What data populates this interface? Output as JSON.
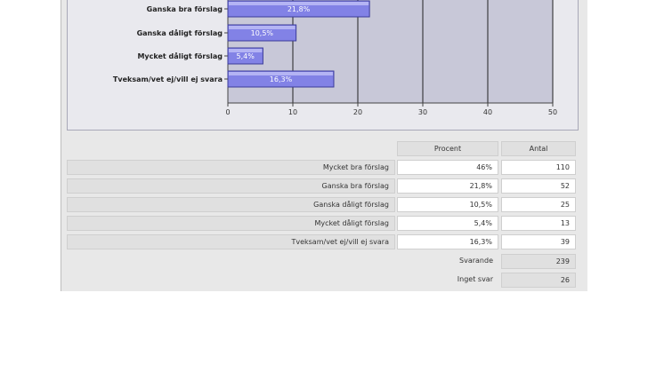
{
  "colors": {
    "bar": "#8282e6",
    "bar_edge": "#3c3c9a",
    "plot_bg": "#c8c8d8",
    "grid": "#222222"
  },
  "chart_data": {
    "type": "bar",
    "orientation": "horizontal",
    "categories": [
      "Ganska bra förslag",
      "Ganska dåligt förslag",
      "Mycket dåligt förslag",
      "Tveksam/vet ej/vill ej svara"
    ],
    "values": [
      21.8,
      10.5,
      5.4,
      16.3
    ],
    "value_labels": [
      "21,8%",
      "10,5%",
      "5,4%",
      "16,3%"
    ],
    "xlim": [
      0,
      50
    ],
    "xticks": [
      "0",
      "10",
      "20",
      "30",
      "40",
      "50"
    ],
    "grid": true
  },
  "table": {
    "headers": [
      "Procent",
      "Antal"
    ],
    "rows": [
      {
        "label": "Mycket bra förslag",
        "procent": "46%",
        "antal": "110"
      },
      {
        "label": "Ganska bra förslag",
        "procent": "21,8%",
        "antal": "52"
      },
      {
        "label": "Ganska dåligt förslag",
        "procent": "10,5%",
        "antal": "25"
      },
      {
        "label": "Mycket dåligt förslag",
        "procent": "5,4%",
        "antal": "13"
      },
      {
        "label": "Tveksam/vet ej/vill ej svara",
        "procent": "16,3%",
        "antal": "39"
      }
    ],
    "summary": [
      {
        "label": "Svarande",
        "value": "239"
      },
      {
        "label": "Inget svar",
        "value": "26"
      }
    ]
  }
}
